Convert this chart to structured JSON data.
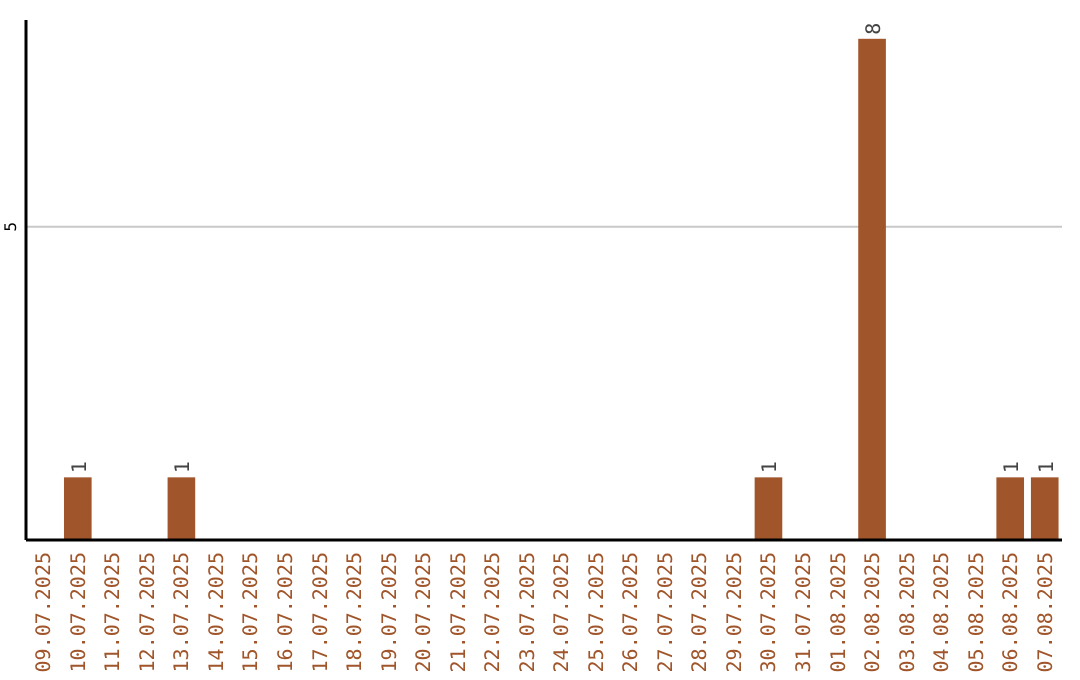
{
  "chart_data": {
    "type": "bar",
    "categories": [
      "09.07.2025",
      "10.07.2025",
      "11.07.2025",
      "12.07.2025",
      "13.07.2025",
      "14.07.2025",
      "15.07.2025",
      "16.07.2025",
      "17.07.2025",
      "18.07.2025",
      "19.07.2025",
      "20.07.2025",
      "21.07.2025",
      "22.07.2025",
      "23.07.2025",
      "24.07.2025",
      "25.07.2025",
      "26.07.2025",
      "27.07.2025",
      "28.07.2025",
      "29.07.2025",
      "30.07.2025",
      "31.07.2025",
      "01.08.2025",
      "02.08.2025",
      "03.08.2025",
      "04.08.2025",
      "05.08.2025",
      "06.08.2025",
      "07.08.2025"
    ],
    "values": [
      0,
      1,
      0,
      0,
      1,
      0,
      0,
      0,
      0,
      0,
      0,
      0,
      0,
      0,
      0,
      0,
      0,
      0,
      0,
      0,
      0,
      1,
      0,
      0,
      8,
      0,
      0,
      0,
      1,
      1
    ],
    "value_labels": [
      null,
      "1",
      null,
      null,
      "1",
      null,
      null,
      null,
      null,
      null,
      null,
      null,
      null,
      null,
      null,
      null,
      null,
      null,
      null,
      null,
      null,
      "1",
      null,
      null,
      "8",
      null,
      null,
      null,
      "1",
      "1"
    ],
    "color": "#a0552a",
    "ylim": [
      0,
      8.3
    ],
    "yticks": [
      {
        "value": 0,
        "label": null
      },
      5
    ],
    "grid": "y"
  }
}
